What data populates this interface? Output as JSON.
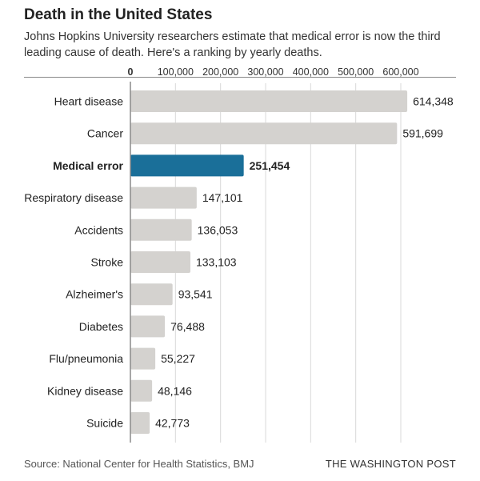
{
  "header": {
    "title": "Death in the United States",
    "subtitle": "Johns Hopkins University researchers estimate that medical error is now the third leading cause of death. Here's a ranking by yearly deaths."
  },
  "footer": {
    "source": "Source: National Center for Health Statistics, BMJ",
    "brand": "THE WASHINGTON POST"
  },
  "colors": {
    "bar": "#d4d2cf",
    "highlight": "#1a6f99",
    "axis": "#8a8a8a",
    "grid": "#d9d9d9"
  },
  "chart_data": {
    "type": "bar",
    "orientation": "horizontal",
    "title": "Death in the United States",
    "xlabel": "",
    "ylabel": "",
    "xlim": [
      0,
      620000
    ],
    "ticks": [
      0,
      100000,
      200000,
      300000,
      400000,
      500000,
      600000
    ],
    "tick_labels": [
      "0",
      "100,000",
      "200,000",
      "300,000",
      "400,000",
      "500,000",
      "600,000"
    ],
    "highlight": "Medical error",
    "categories": [
      "Heart disease",
      "Cancer",
      "Medical error",
      "Respiratory disease",
      "Accidents",
      "Stroke",
      "Alzheimer's",
      "Diabetes",
      "Flu/pneumonia",
      "Kidney disease",
      "Suicide"
    ],
    "values": [
      614348,
      591699,
      251454,
      147101,
      136053,
      133103,
      93541,
      76488,
      55227,
      48146,
      42773
    ],
    "value_labels": [
      "614,348",
      "591,699",
      "251,454",
      "147,101",
      "136,053",
      "133,103",
      "93,541",
      "76,488",
      "55,227",
      "48,146",
      "42,773"
    ]
  }
}
